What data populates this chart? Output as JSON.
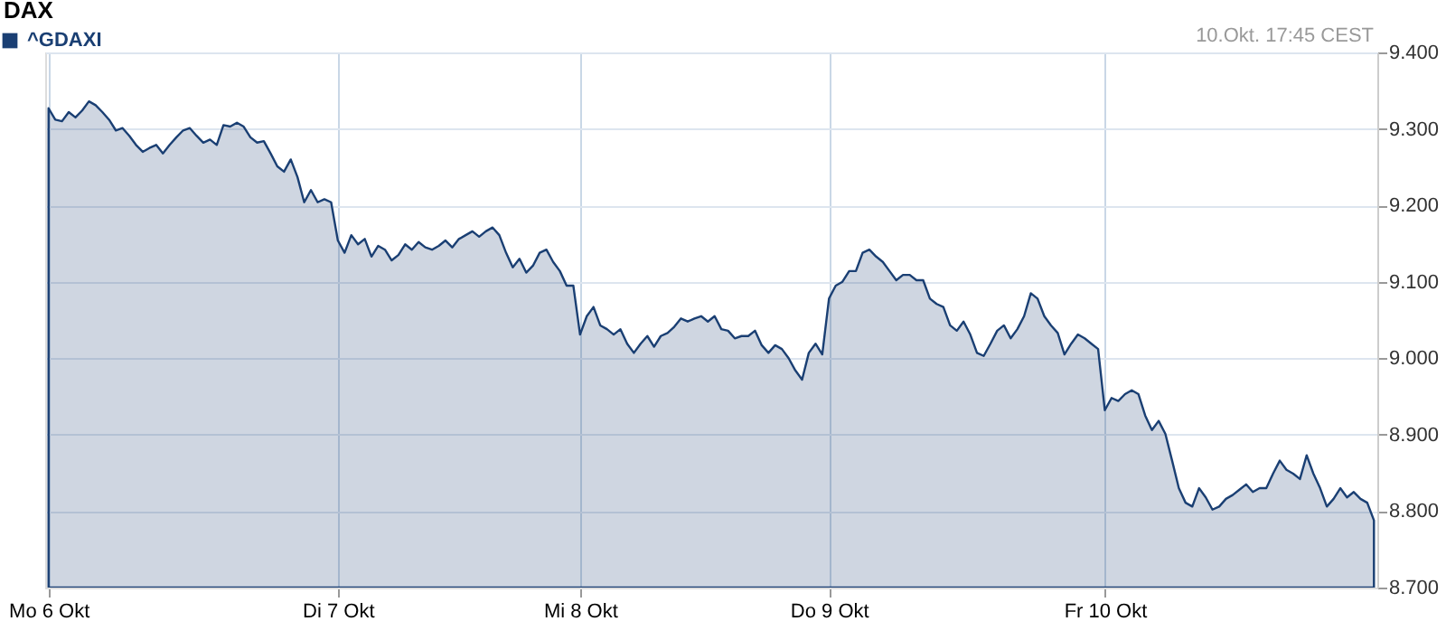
{
  "chart_data": {
    "type": "area",
    "title": "DAX",
    "annotations": [
      "10.Okt. 17:45 CEST"
    ],
    "legend": "top left",
    "grid": true,
    "categories": [
      "Mo  6 Okt",
      null,
      null,
      null,
      null,
      null,
      null,
      null,
      null,
      null,
      null,
      null,
      null,
      null,
      null,
      null,
      null,
      null,
      null,
      null,
      null,
      null,
      null,
      null,
      null,
      null,
      null,
      null,
      null,
      null,
      null,
      null,
      null,
      null,
      null,
      null,
      null,
      null,
      null,
      null,
      null,
      null,
      null,
      "Di  7 Okt",
      null,
      null,
      null,
      null,
      null,
      null,
      null,
      null,
      null,
      null,
      null,
      null,
      null,
      null,
      null,
      null,
      null,
      null,
      null,
      null,
      null,
      null,
      null,
      null,
      null,
      null,
      null,
      null,
      null,
      null,
      null,
      null,
      null,
      null,
      null,
      "Mi  8 Okt",
      null,
      null,
      null,
      null,
      null,
      null,
      null,
      null,
      null,
      null,
      null,
      null,
      null,
      null,
      null,
      null,
      null,
      null,
      null,
      null,
      null,
      null,
      null,
      null,
      null,
      null,
      null,
      null,
      null,
      null,
      null,
      null,
      null,
      null,
      null,
      null,
      "Do  9 Okt",
      null,
      null,
      null,
      null,
      null,
      null,
      null,
      null,
      null,
      null,
      null,
      null,
      null,
      null,
      null,
      null,
      null,
      null,
      null,
      null,
      null,
      null,
      null,
      null,
      null,
      null,
      null,
      null,
      null,
      null,
      null,
      null,
      null,
      null,
      null,
      null,
      null,
      null,
      null,
      null,
      "Fr 10 Okt",
      null,
      null,
      null,
      null,
      null,
      null,
      null,
      null,
      null,
      null,
      null,
      null,
      null,
      null,
      null,
      null,
      null,
      null,
      null,
      null,
      null,
      null,
      null,
      null,
      null,
      null,
      null,
      null,
      null,
      null,
      null,
      null,
      null,
      null,
      null,
      null,
      null,
      null,
      null,
      null
    ],
    "ylim": [
      8700,
      9400
    ],
    "yticks": [
      {
        "value": 8700,
        "label": "8.700"
      },
      {
        "value": 8800,
        "label": "8.800"
      },
      {
        "value": 8900,
        "label": "8.900"
      },
      {
        "value": 9000,
        "label": "9.000"
      },
      {
        "value": 9100,
        "label": "9.100"
      },
      {
        "value": 9200,
        "label": "9.200"
      },
      {
        "value": 9300,
        "label": "9.300"
      },
      {
        "value": 9400,
        "label": "9.400"
      }
    ],
    "series": [
      {
        "name": "^GDAXI",
        "color": "#1a3f73",
        "values": [
          9327,
          9312,
          9310,
          9322,
          9315,
          9324,
          9336,
          9331,
          9322,
          9312,
          9298,
          9301,
          9291,
          9279,
          9270,
          9275,
          9279,
          9268,
          9279,
          9289,
          9298,
          9301,
          9291,
          9282,
          9286,
          9279,
          9305,
          9303,
          9308,
          9303,
          9289,
          9282,
          9284,
          9268,
          9251,
          9244,
          9260,
          9237,
          9204,
          9220,
          9204,
          9208,
          9204,
          9154,
          9138,
          9161,
          9149,
          9156,
          9133,
          9147,
          9142,
          9128,
          9135,
          9149,
          9142,
          9152,
          9145,
          9142,
          9147,
          9154,
          9145,
          9156,
          9161,
          9166,
          9159,
          9166,
          9171,
          9161,
          9138,
          9119,
          9130,
          9112,
          9121,
          9138,
          9142,
          9126,
          9114,
          9095,
          9095,
          9031,
          9055,
          9067,
          9043,
          9038,
          9031,
          9038,
          9019,
          9007,
          9019,
          9029,
          9015,
          9029,
          9033,
          9041,
          9052,
          9048,
          9052,
          9055,
          9048,
          9055,
          9038,
          9036,
          9026,
          9029,
          9029,
          9036,
          9017,
          9007,
          9017,
          9012,
          9000,
          8984,
          8972,
          9007,
          9019,
          9005,
          9078,
          9095,
          9100,
          9114,
          9114,
          9138,
          9142,
          9133,
          9126,
          9114,
          9102,
          9109,
          9109,
          9102,
          9102,
          9078,
          9071,
          9067,
          9043,
          9036,
          9048,
          9031,
          9007,
          9003,
          9019,
          9036,
          9043,
          9026,
          9038,
          9055,
          9085,
          9078,
          9055,
          9043,
          9033,
          9005,
          9019,
          9031,
          9026,
          9019,
          9012,
          8932,
          8948,
          8944,
          8953,
          8958,
          8953,
          8925,
          8906,
          8918,
          8901,
          8866,
          8830,
          8811,
          8806,
          8830,
          8818,
          8802,
          8806,
          8816,
          8821,
          8828,
          8835,
          8825,
          8830,
          8830,
          8849,
          8866,
          8854,
          8849,
          8842,
          8873,
          8849,
          8830,
          8806,
          8816,
          8830,
          8818,
          8825,
          8816,
          8811,
          8788
        ]
      }
    ]
  }
}
